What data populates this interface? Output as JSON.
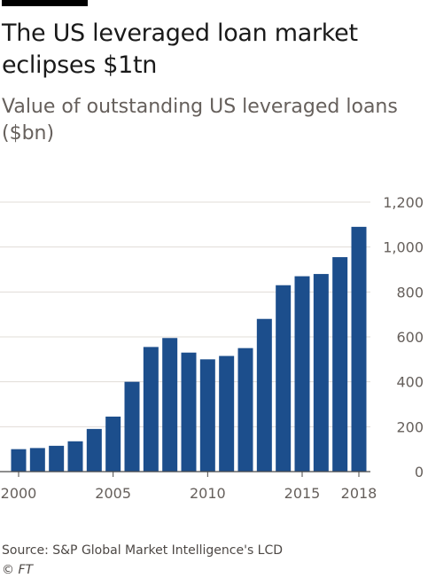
{
  "header": {
    "title": "The US leveraged loan market eclipses $1tn",
    "subtitle": "Value of outstanding US leveraged loans ($bn)"
  },
  "footer": {
    "source": "Source: S&P Global Market Intelligence's LCD",
    "copyright": "© FT"
  },
  "colors": {
    "bar": "#1c4e8c",
    "grid": "#e1dcd7",
    "axis": "#4a4a4a",
    "tick_text": "#66605c"
  },
  "chart_data": {
    "type": "bar",
    "title": "The US leveraged loan market eclipses $1tn",
    "subtitle": "Value of outstanding US leveraged loans ($bn)",
    "xlabel": "",
    "ylabel": "",
    "categories": [
      "2000",
      "2001",
      "2002",
      "2003",
      "2004",
      "2005",
      "2006",
      "2007",
      "2008",
      "2009",
      "2010",
      "2011",
      "2012",
      "2013",
      "2014",
      "2015",
      "2016",
      "2017",
      "2018"
    ],
    "values": [
      100,
      105,
      115,
      135,
      190,
      245,
      400,
      555,
      595,
      530,
      500,
      515,
      550,
      680,
      830,
      870,
      880,
      955,
      1090
    ],
    "ylim": [
      0,
      1200
    ],
    "yticks": [
      0,
      200,
      400,
      600,
      800,
      1000,
      1200
    ],
    "ytick_labels": [
      "0",
      "200",
      "400",
      "600",
      "800",
      "1,000",
      "1,200"
    ],
    "xtick_labels": [
      "2000",
      "2005",
      "2010",
      "2015",
      "2018"
    ],
    "y_axis_side": "right",
    "grid": true,
    "legend": "none"
  }
}
